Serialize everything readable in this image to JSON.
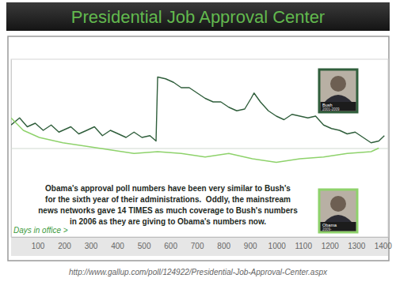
{
  "chart_data": {
    "type": "line",
    "title": "Presidential Job Approval Center",
    "x_label": "Days in office >",
    "annotation": [
      "Obama's approval poll numbers have been very similar to Bush's",
      "for the sixth year of their administrations.  Oddly, the mainstream",
      "news networks gave 14 TIMES as much coverage to Bush's numbers",
      "in 2006 as they are giving to Obama's numbers now."
    ],
    "source": "http://www.gallup.com/poll/124922/Presidential-Job-Approval-Center.aspx",
    "xlim": [
      0,
      1420
    ],
    "xticks": [
      100,
      200,
      300,
      400,
      500,
      600,
      700,
      800,
      900,
      1000,
      1100,
      1200,
      1300,
      1400
    ],
    "ylim": [
      0,
      100
    ],
    "yticks": [
      50
    ],
    "grid": true,
    "tick_labels": "x",
    "series": [
      {
        "name": "Bush",
        "years": "2001-2009",
        "color": "#2f5e3b",
        "x": [
          0,
          32,
          61,
          91,
          121,
          151,
          180,
          225,
          255,
          285,
          314,
          344,
          374,
          404,
          433,
          463,
          493,
          523,
          546,
          552,
          582,
          612,
          641,
          671,
          701,
          731,
          761,
          790,
          820,
          850,
          880,
          904,
          915,
          939,
          969,
          999,
          1028,
          1058,
          1088,
          1118,
          1147,
          1177,
          1207,
          1237,
          1266,
          1296,
          1326,
          1356,
          1385,
          1406
        ],
        "values": [
          63,
          67,
          62,
          64,
          60,
          63,
          59,
          62,
          58,
          60,
          62,
          57,
          60,
          58,
          56,
          59,
          56,
          57,
          54,
          90,
          89,
          87,
          84,
          84,
          81,
          78,
          76,
          76,
          73,
          71,
          72,
          78,
          81,
          76,
          71,
          68,
          66,
          69,
          68,
          67,
          68,
          63,
          61,
          60,
          58,
          59,
          56,
          53,
          54,
          57
        ]
      },
      {
        "name": "Obama",
        "years": "2009-",
        "color": "#8ed26b",
        "x": [
          0,
          46,
          106,
          195,
          285,
          374,
          463,
          552,
          641,
          731,
          820,
          909,
          999,
          1088,
          1177,
          1266,
          1356,
          1385
        ],
        "values": [
          67,
          60,
          56,
          53,
          51,
          49,
          47,
          48,
          47,
          45,
          47,
          44,
          42,
          44,
          45,
          47,
          48,
          50
        ]
      }
    ]
  }
}
